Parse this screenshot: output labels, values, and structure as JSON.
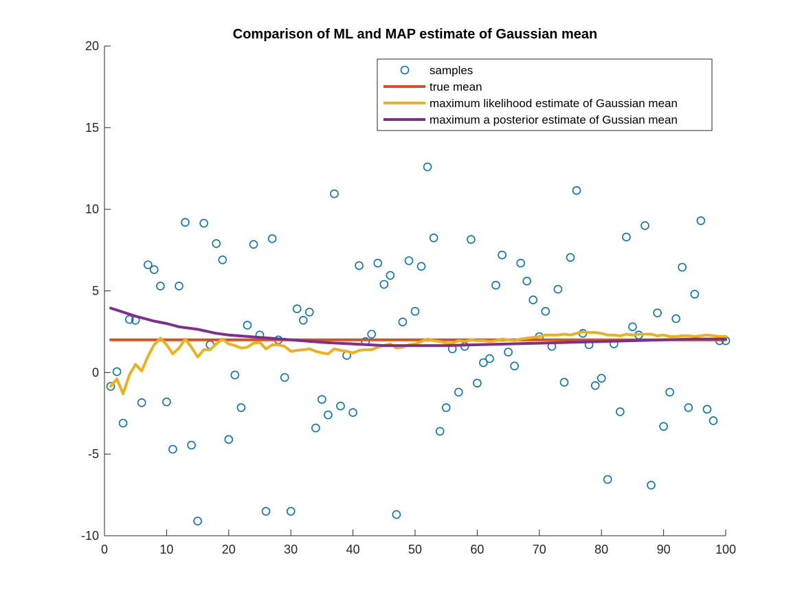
{
  "chart_data": {
    "type": "scatter+line",
    "title": "Comparison of ML and MAP estimate of Gaussian mean",
    "xlabel": "",
    "ylabel": "",
    "xlim": [
      0,
      100
    ],
    "ylim": [
      -10,
      20
    ],
    "xticks": [
      "0",
      "10",
      "20",
      "30",
      "40",
      "50",
      "60",
      "70",
      "80",
      "90",
      "100"
    ],
    "yticks": [
      "-10",
      "-5",
      "0",
      "5",
      "10",
      "15",
      "20"
    ],
    "grid": false,
    "legend_position": "top-right",
    "colors": {
      "samples": "#0072BD",
      "true_mean": "#D95319",
      "ml": "#EDB120",
      "map": "#7E2F8E",
      "axis": "#262626"
    },
    "series": [
      {
        "name": "samples",
        "kind": "markers",
        "x": [
          1,
          2,
          3,
          4,
          5,
          6,
          7,
          8,
          9,
          10,
          11,
          12,
          13,
          14,
          15,
          16,
          17,
          18,
          19,
          20,
          21,
          22,
          23,
          24,
          25,
          26,
          27,
          28,
          29,
          30,
          31,
          32,
          33,
          34,
          35,
          36,
          37,
          38,
          39,
          40,
          41,
          42,
          43,
          44,
          45,
          46,
          47,
          48,
          49,
          50,
          51,
          52,
          53,
          54,
          55,
          56,
          57,
          58,
          59,
          60,
          61,
          62,
          63,
          64,
          65,
          66,
          67,
          68,
          69,
          70,
          71,
          72,
          73,
          74,
          75,
          76,
          77,
          78,
          79,
          80,
          81,
          82,
          83,
          84,
          85,
          86,
          87,
          88,
          89,
          90,
          91,
          92,
          93,
          94,
          95,
          96,
          97,
          98,
          99,
          100
        ],
        "y": [
          -0.85,
          0.05,
          -3.1,
          3.25,
          3.2,
          -1.85,
          6.6,
          6.3,
          5.3,
          -1.8,
          -4.7,
          5.3,
          9.2,
          -4.45,
          -9.1,
          9.15,
          1.7,
          7.9,
          6.9,
          -4.1,
          -0.15,
          -2.15,
          2.9,
          7.85,
          2.3,
          -8.5,
          8.2,
          2.0,
          -0.3,
          -8.5,
          3.9,
          3.2,
          3.7,
          -3.4,
          -1.65,
          -2.6,
          10.95,
          -2.05,
          1.05,
          -2.45,
          6.55,
          1.9,
          2.35,
          6.7,
          5.4,
          5.95,
          -8.7,
          3.1,
          6.85,
          3.75,
          6.5,
          12.6,
          8.25,
          -3.6,
          -2.15,
          1.45,
          -1.2,
          1.6,
          8.15,
          -0.65,
          0.6,
          0.85,
          5.35,
          7.2,
          1.25,
          0.4,
          6.7,
          5.6,
          4.45,
          2.2,
          3.75,
          1.6,
          5.1,
          -0.6,
          7.05,
          11.15,
          2.4,
          1.7,
          -0.8,
          -0.35,
          -6.55,
          1.75,
          -2.4,
          8.3,
          2.8,
          2.3,
          9.0,
          -6.9,
          3.65,
          -3.3,
          -1.2,
          3.3,
          6.45,
          -2.15,
          4.8,
          9.3,
          -2.25,
          -2.95,
          1.95,
          1.95
        ]
      },
      {
        "name": "true mean",
        "kind": "line",
        "x": [
          1,
          100
        ],
        "y": [
          2,
          2
        ]
      },
      {
        "name": "maximum likelihood estimate of Gaussian mean",
        "kind": "line",
        "x": [
          1,
          2,
          3,
          4,
          5,
          6,
          7,
          8,
          9,
          10,
          11,
          12,
          13,
          14,
          15,
          16,
          17,
          18,
          19,
          20,
          21,
          22,
          23,
          24,
          25,
          26,
          27,
          28,
          29,
          30,
          31,
          32,
          33,
          34,
          35,
          36,
          37,
          38,
          39,
          40,
          41,
          42,
          43,
          44,
          45,
          46,
          47,
          48,
          49,
          50,
          51,
          52,
          53,
          54,
          55,
          56,
          57,
          58,
          59,
          60,
          61,
          62,
          63,
          64,
          65,
          66,
          67,
          68,
          69,
          70,
          71,
          72,
          73,
          74,
          75,
          76,
          77,
          78,
          79,
          80,
          81,
          82,
          83,
          84,
          85,
          86,
          87,
          88,
          89,
          90,
          91,
          92,
          93,
          94,
          95,
          96,
          97,
          98,
          99,
          100
        ],
        "y": [
          -0.85,
          -0.4,
          -1.3,
          -0.15,
          0.5,
          0.1,
          1.0,
          1.7,
          2.1,
          1.7,
          1.15,
          1.5,
          2.05,
          1.55,
          0.95,
          1.4,
          1.4,
          1.75,
          2.05,
          1.75,
          1.65,
          1.5,
          1.55,
          1.8,
          1.85,
          1.45,
          1.7,
          1.7,
          1.6,
          1.3,
          1.35,
          1.4,
          1.45,
          1.3,
          1.2,
          1.15,
          1.45,
          1.35,
          1.3,
          1.2,
          1.35,
          1.4,
          1.4,
          1.55,
          1.65,
          1.75,
          1.5,
          1.55,
          1.7,
          1.75,
          1.9,
          2.05,
          1.95,
          1.9,
          1.8,
          1.8,
          1.95,
          1.9,
          2.0,
          1.95,
          1.95,
          1.9,
          1.95,
          2.05,
          2.0,
          1.95,
          2.05,
          2.1,
          2.15,
          2.2,
          2.3,
          2.3,
          2.3,
          2.35,
          2.3,
          2.4,
          2.5,
          2.45,
          2.45,
          2.4,
          2.3,
          2.3,
          2.25,
          2.35,
          2.3,
          2.35,
          2.35,
          2.35,
          2.25,
          2.3,
          2.2,
          2.2,
          2.25,
          2.25,
          2.2,
          2.25,
          2.3,
          2.25,
          2.2,
          2.2
        ]
      },
      {
        "name": "maximum a posterior estimate of Gussian mean",
        "kind": "line",
        "x": [
          1,
          3,
          5,
          8,
          10,
          12,
          15,
          18,
          20,
          25,
          30,
          35,
          40,
          45,
          50,
          55,
          60,
          65,
          70,
          75,
          80,
          85,
          90,
          95,
          100
        ],
        "y": [
          3.95,
          3.7,
          3.45,
          3.15,
          3.0,
          2.8,
          2.65,
          2.4,
          2.3,
          2.15,
          2.0,
          1.85,
          1.75,
          1.65,
          1.65,
          1.65,
          1.7,
          1.75,
          1.8,
          1.85,
          1.9,
          1.95,
          2.0,
          2.05,
          2.05
        ]
      }
    ]
  }
}
